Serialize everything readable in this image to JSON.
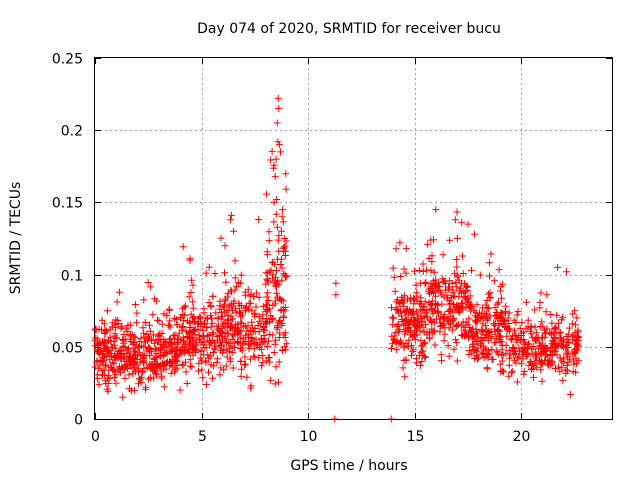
{
  "chart_data": {
    "type": "scatter",
    "title": "Day 074 of 2020, SRMTID for receiver bucu",
    "xlabel": "GPS time / hours",
    "ylabel": "SRMTID / TECUs",
    "xlim": [
      0,
      24.25
    ],
    "ylim": [
      0,
      0.25
    ],
    "xticks": [
      0,
      5,
      10,
      15,
      20
    ],
    "yticks": [
      0,
      0.05,
      0.1,
      0.15,
      0.2,
      0.25
    ],
    "ytick_labels": [
      "0",
      "0.05",
      "0.1",
      "0.15",
      "0.2",
      "0.25"
    ],
    "grid": true,
    "marker": "+",
    "color": "#ff0000",
    "series": [
      {
        "name": "SRMTID",
        "seed": 20200314,
        "segments": [
          {
            "x_start": 0.0,
            "x_end": 2.0,
            "base": 0.045,
            "spread": 0.014,
            "count": 220
          },
          {
            "x_start": 2.0,
            "x_end": 4.0,
            "base": 0.045,
            "spread": 0.014,
            "count": 200
          },
          {
            "x_start": 4.0,
            "x_end": 6.0,
            "base": 0.055,
            "spread": 0.017,
            "count": 200
          },
          {
            "x_start": 6.0,
            "x_end": 8.0,
            "base": 0.062,
            "spread": 0.02,
            "count": 200
          },
          {
            "x_start": 8.0,
            "x_end": 9.0,
            "base": 0.085,
            "spread": 0.035,
            "count": 120
          },
          {
            "x_start": 13.9,
            "x_end": 15.5,
            "base": 0.065,
            "spread": 0.018,
            "count": 170
          },
          {
            "x_start": 15.5,
            "x_end": 17.5,
            "base": 0.075,
            "spread": 0.02,
            "count": 200
          },
          {
            "x_start": 17.5,
            "x_end": 19.5,
            "base": 0.06,
            "spread": 0.016,
            "count": 200
          },
          {
            "x_start": 19.5,
            "x_end": 22.7,
            "base": 0.05,
            "spread": 0.013,
            "count": 260
          }
        ],
        "points": [
          [
            8.6,
            0.222
          ],
          [
            8.62,
            0.215
          ],
          [
            8.55,
            0.205
          ],
          [
            8.58,
            0.192
          ],
          [
            8.65,
            0.19
          ],
          [
            8.5,
            0.18
          ],
          [
            8.7,
            0.185
          ],
          [
            8.45,
            0.168
          ],
          [
            8.4,
            0.15
          ],
          [
            8.52,
            0.152
          ],
          [
            8.8,
            0.145
          ],
          [
            8.78,
            0.14
          ],
          [
            8.75,
            0.13
          ],
          [
            8.9,
            0.125
          ],
          [
            8.85,
            0.118
          ],
          [
            6.4,
            0.141
          ],
          [
            6.5,
            0.13
          ],
          [
            6.1,
            0.12
          ],
          [
            8.9,
            0.05
          ],
          [
            8.95,
            0.048
          ],
          [
            11.3,
            0.094
          ],
          [
            11.3,
            0.086
          ],
          [
            11.25,
            0.0
          ],
          [
            13.9,
            0.0
          ],
          [
            14.3,
            0.122
          ],
          [
            14.6,
            0.118
          ],
          [
            16.9,
            0.138
          ],
          [
            17.2,
            0.136
          ],
          [
            17.5,
            0.135
          ],
          [
            17.0,
            0.125
          ],
          [
            17.8,
            0.128
          ],
          [
            21.7,
            0.105
          ],
          [
            22.5,
            0.075
          ],
          [
            22.6,
            0.07
          ],
          [
            22.3,
            0.017
          ],
          [
            1.3,
            0.015
          ]
        ]
      }
    ]
  }
}
